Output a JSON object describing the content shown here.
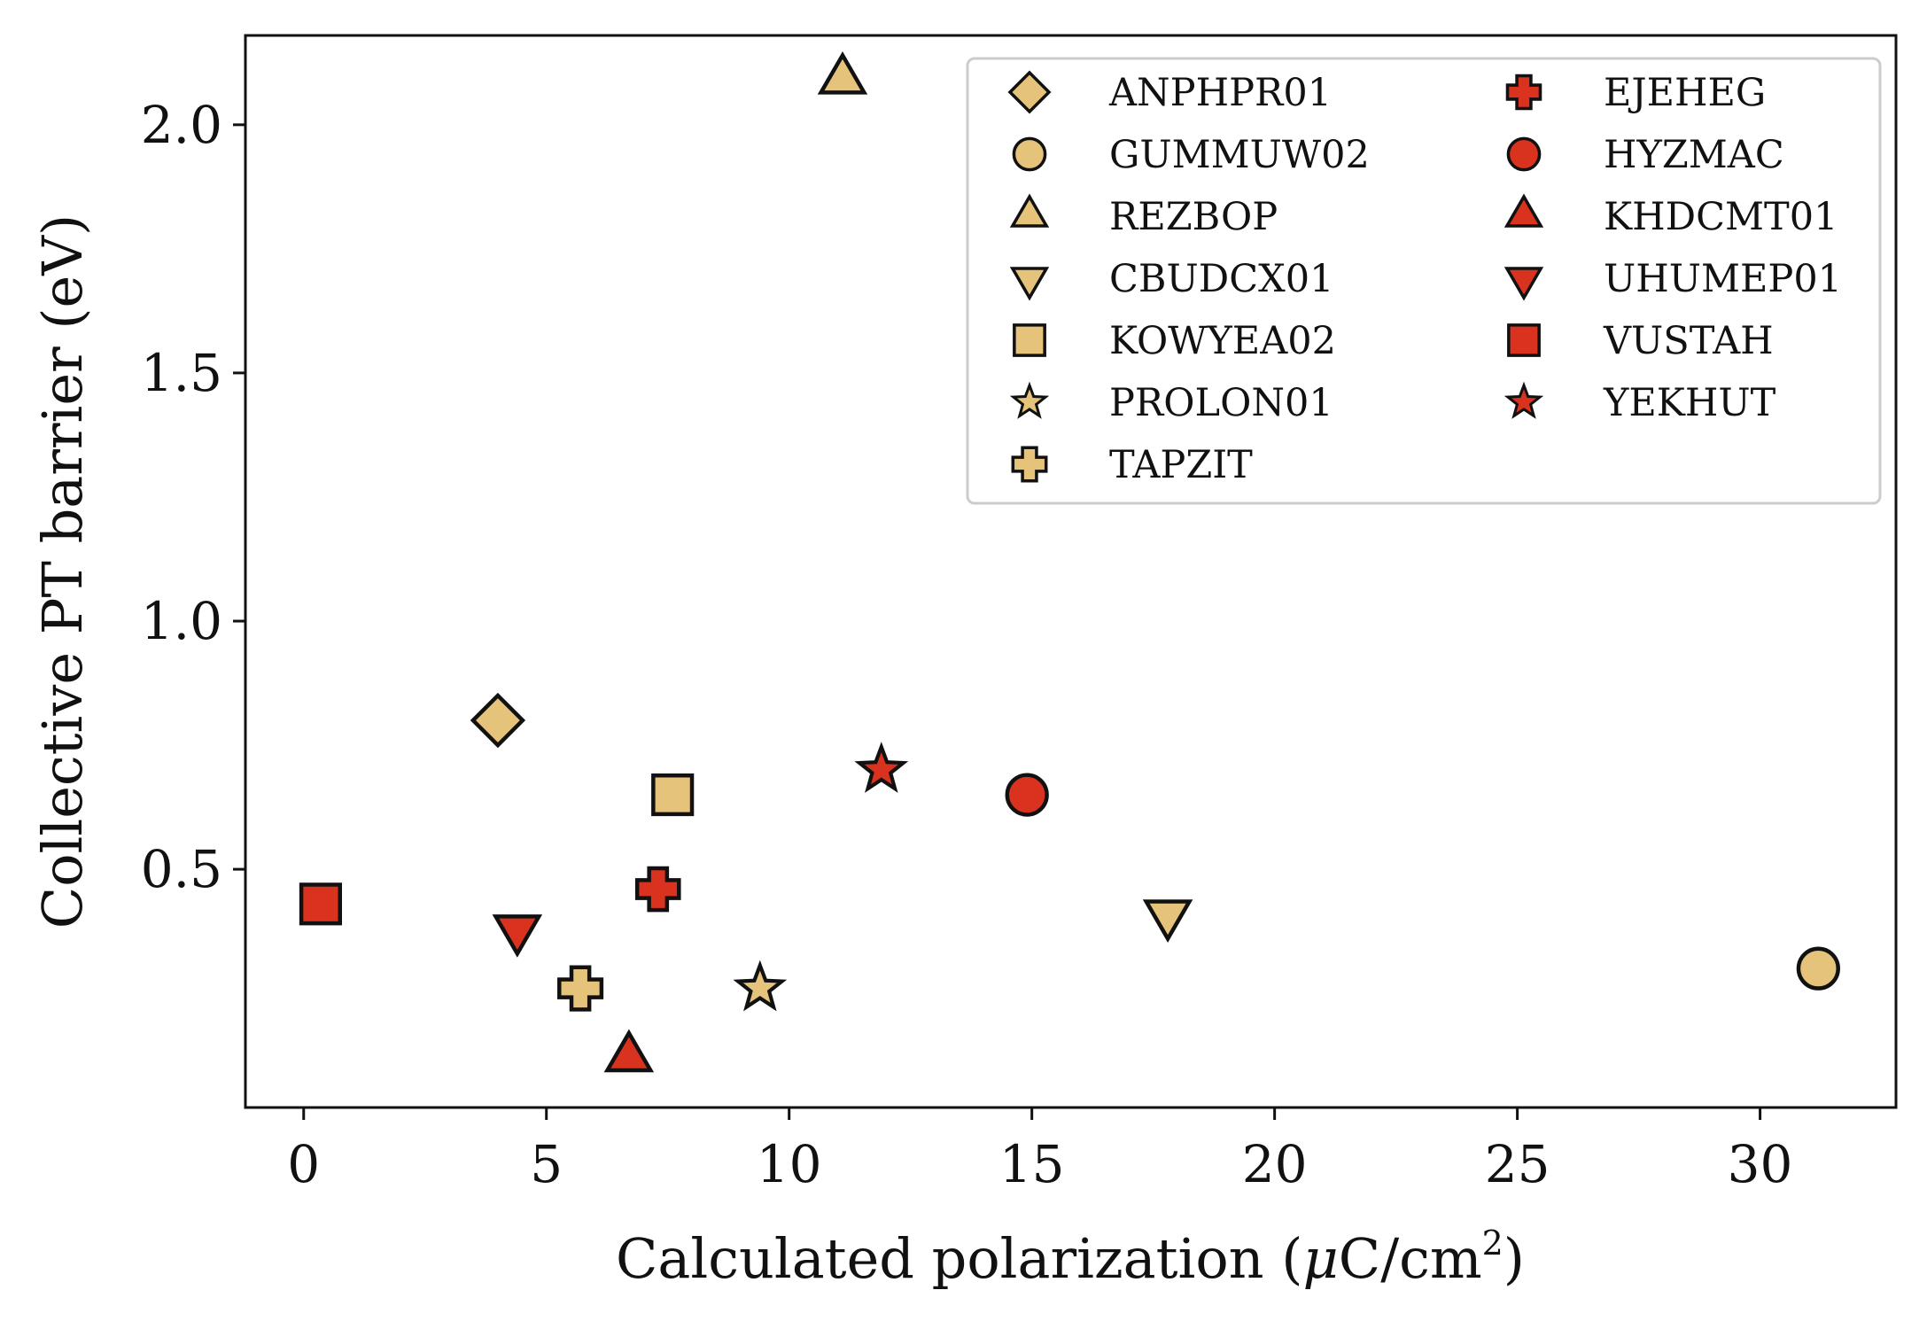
{
  "chart_data": {
    "type": "scatter",
    "title": "",
    "xlabel": "Calculated polarization (",
    "xlabel_mu": "μ",
    "xlabel_unit": "C/cm",
    "xlabel_sup": "2",
    "xlabel_close": ")",
    "ylabel": "Collective PT barrier (eV)",
    "xlim": [
      -1.2,
      32.8
    ],
    "ylim": [
      0.02,
      2.18
    ],
    "xticks": [
      0,
      5,
      10,
      15,
      20,
      25,
      30
    ],
    "xtick_labels": [
      "0",
      "5",
      "10",
      "15",
      "20",
      "25",
      "30"
    ],
    "yticks": [
      0.5,
      1.0,
      1.5,
      2.0
    ],
    "ytick_labels": [
      "0.5",
      "1.0",
      "1.5",
      "2.0"
    ],
    "grid": false,
    "legend_position": "top-right",
    "legend_columns": 2,
    "colors": {
      "tan": "#e5c37a",
      "red": "#d93320",
      "edge": "#111111"
    },
    "series": [
      {
        "name": "ANPHPR01",
        "marker": "diamond",
        "color": "tan",
        "x": 4.0,
        "y": 0.8
      },
      {
        "name": "GUMMUW02",
        "marker": "circle",
        "color": "tan",
        "x": 31.2,
        "y": 0.3
      },
      {
        "name": "REZBOP",
        "marker": "triangle-up",
        "color": "tan",
        "x": 11.1,
        "y": 2.09
      },
      {
        "name": "CBUDCX01",
        "marker": "triangle-down",
        "color": "tan",
        "x": 17.8,
        "y": 0.41
      },
      {
        "name": "KOWYEA02",
        "marker": "square",
        "color": "tan",
        "x": 7.6,
        "y": 0.65
      },
      {
        "name": "PROLON01",
        "marker": "star",
        "color": "tan",
        "x": 9.4,
        "y": 0.26
      },
      {
        "name": "TAPZIT",
        "marker": "plus",
        "color": "tan",
        "x": 5.7,
        "y": 0.26
      },
      {
        "name": "EJEHEG",
        "marker": "x",
        "color": "red",
        "x": 7.3,
        "y": 0.46
      },
      {
        "name": "HYZMAC",
        "marker": "circle",
        "color": "red",
        "x": 14.9,
        "y": 0.65
      },
      {
        "name": "KHDCMT01",
        "marker": "triangle-up",
        "color": "red",
        "x": 6.7,
        "y": 0.12
      },
      {
        "name": "UHUMEP01",
        "marker": "triangle-down",
        "color": "red",
        "x": 4.4,
        "y": 0.38
      },
      {
        "name": "VUSTAH",
        "marker": "square",
        "color": "red",
        "x": 0.35,
        "y": 0.43
      },
      {
        "name": "YEKHUT",
        "marker": "star",
        "color": "red",
        "x": 11.9,
        "y": 0.7
      }
    ]
  }
}
